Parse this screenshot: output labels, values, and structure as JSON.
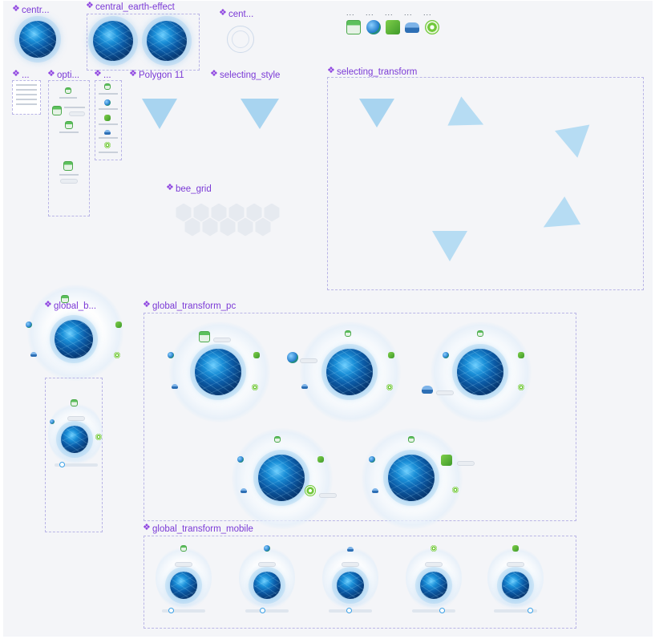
{
  "components": {
    "c1": "centr...",
    "c2": "central_earth-effect",
    "c3": "cent...",
    "c4": "...",
    "c5": "opti...",
    "c6": "...",
    "c7": "Polygon 11",
    "c8": "selecting_style",
    "c9": "selecting_transform",
    "c10": "bee_grid",
    "c11": "global_b...",
    "c12": "global_transform_pc",
    "c13": "global_transform_mobile"
  },
  "icon_row": {
    "dots": "...",
    "icons": [
      "calendar-icon",
      "earth-icon",
      "shopping-bag-icon",
      "car-icon",
      "target-icon"
    ]
  },
  "colors": {
    "label": "#7b3ad6",
    "frame_border": "#b9b5e6",
    "canvas": "#f4f5f8",
    "globe_core": "#0b5ca8",
    "accent_green": "#71c83a"
  }
}
